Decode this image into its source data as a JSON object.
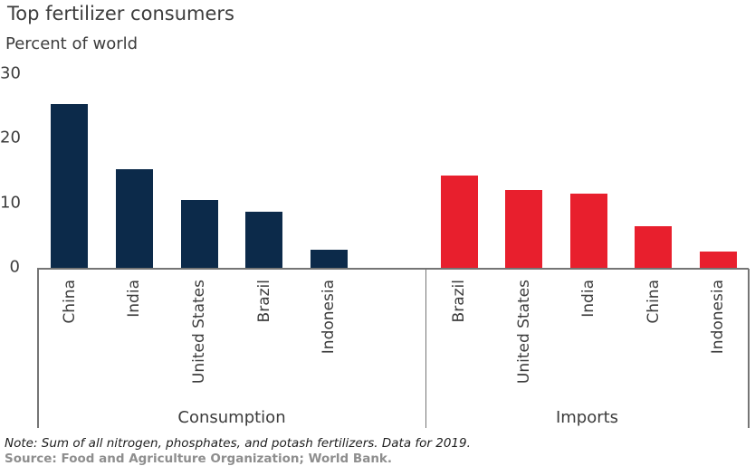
{
  "header": {
    "title": "Top fertilizer consumers",
    "subtitle": "Percent of world"
  },
  "footer": {
    "note": "Note: Sum of all nitrogen, phosphates, and potash fertilizers. Data for 2019.",
    "source": "Source: Food and Agriculture Organization; World Bank."
  },
  "chart_data": {
    "type": "bar",
    "title": "Top fertilizer consumers",
    "ylabel": "Percent of world",
    "ylim": [
      0,
      30
    ],
    "yticks": [
      0,
      10,
      20,
      30
    ],
    "grid": false,
    "legend": "none",
    "axis_color": "#757575",
    "groups": [
      {
        "label": "Consumption",
        "color": "#0c2a4a",
        "color_name": "navy",
        "categories": [
          "China",
          "India",
          "United States",
          "Brazil",
          "Indonesia"
        ],
        "values": [
          25.3,
          15.3,
          10.5,
          8.7,
          2.8
        ]
      },
      {
        "label": "Imports",
        "color": "#e81f2d",
        "color_name": "red",
        "categories": [
          "Brazil",
          "United States",
          "India",
          "China",
          "Indonesia"
        ],
        "values": [
          14.3,
          12.0,
          11.4,
          6.4,
          2.5
        ]
      }
    ]
  }
}
